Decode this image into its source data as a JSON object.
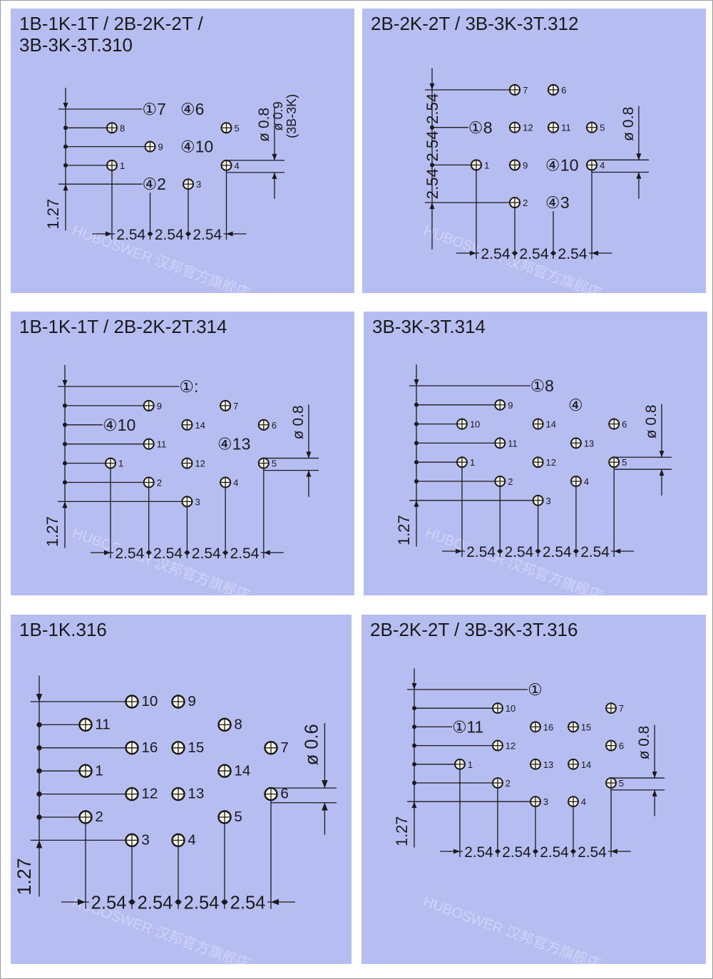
{
  "watermark": "HUBOSWER 汉邦官方旗舰店",
  "watermark_en": "HUBOSWER Hanbang Official Flagship Store",
  "colors": {
    "panel": "#b5bdf1",
    "line": "#1a1a1a",
    "hole_fill": "#fffbe8"
  },
  "panels": [
    {
      "title": "1B-1K-1T / 2B-2K-2T /\n3B-3K-3T.310",
      "pitch_label": "2.54",
      "left_labels": [
        "1.27"
      ],
      "diameter_labels": [
        "ø 0.8",
        "ø 0.9",
        "(3B-3K)"
      ],
      "rows": [
        [
          "",
          "①7",
          "④6",
          ""
        ],
        [
          "8",
          "",
          "",
          "5"
        ],
        [
          "",
          "9",
          "④10",
          ""
        ],
        [
          "1",
          "",
          "",
          "4"
        ],
        [
          "",
          "④2",
          "3",
          ""
        ]
      ]
    },
    {
      "title": "2B-2K-2T / 3B-3K-3T.312",
      "pitch_label": "2.54",
      "left_labels": [
        "2.54",
        "2.54",
        "2.54"
      ],
      "diameter_labels": [
        "ø 0.8"
      ],
      "rows": [
        [
          "",
          "7",
          "6",
          ""
        ],
        [
          "①8",
          "12",
          "11",
          "5"
        ],
        [
          "1",
          "9",
          "④10",
          "4"
        ],
        [
          "",
          "2",
          "④3",
          ""
        ]
      ]
    },
    {
      "title": "1B-1K-1T / 2B-2K-2T.314",
      "pitch_label": "2.54",
      "left_labels": [
        "1.27"
      ],
      "diameter_labels": [
        "ø 0.8"
      ],
      "rows": [
        [
          "",
          "",
          "①:",
          "",
          ""
        ],
        [
          "",
          "9",
          "",
          "7",
          ""
        ],
        [
          "④10",
          "",
          "14",
          "",
          "6"
        ],
        [
          "",
          "11",
          "",
          "④13",
          ""
        ],
        [
          "1",
          "",
          "12",
          "",
          "5"
        ],
        [
          "",
          "2",
          "",
          "4",
          ""
        ],
        [
          "",
          "",
          "3",
          "",
          ""
        ]
      ]
    },
    {
      "title": "3B-3K-3T.314",
      "pitch_label": "2.54",
      "left_labels": [
        "1.27"
      ],
      "diameter_labels": [
        "ø 0.8"
      ],
      "rows": [
        [
          "",
          "",
          "①8",
          "",
          ""
        ],
        [
          "",
          "9",
          "",
          "④",
          ""
        ],
        [
          "10",
          "",
          "14",
          "",
          "6"
        ],
        [
          "",
          "11",
          "",
          "13",
          ""
        ],
        [
          "1",
          "",
          "12",
          "",
          "5"
        ],
        [
          "",
          "2",
          "",
          "4",
          ""
        ],
        [
          "",
          "",
          "3",
          "",
          ""
        ]
      ]
    },
    {
      "title": "1B-1K.316",
      "pitch_label": "2.54",
      "left_labels": [
        "1.27"
      ],
      "diameter_labels": [
        "ø 0.6"
      ],
      "rows": [
        [
          "",
          "10",
          "9",
          "",
          ""
        ],
        [
          "11",
          "",
          "",
          "8",
          ""
        ],
        [
          "",
          "16",
          "15",
          "",
          "7"
        ],
        [
          "1",
          "",
          "",
          "14",
          ""
        ],
        [
          "",
          "12",
          "13",
          "",
          "6"
        ],
        [
          "2",
          "",
          "",
          "5",
          ""
        ],
        [
          "",
          "3",
          "4",
          "",
          ""
        ]
      ]
    },
    {
      "title": "2B-2K-2T / 3B-3K-3T.316",
      "pitch_label": "2.54",
      "left_labels": [
        "1.27"
      ],
      "diameter_labels": [
        "ø 0.8"
      ],
      "rows": [
        [
          "",
          "",
          "①",
          "",
          ""
        ],
        [
          "",
          "10",
          "",
          "",
          "7"
        ],
        [
          "①11",
          "",
          "16",
          "15",
          ""
        ],
        [
          "",
          "12",
          "",
          "",
          "6"
        ],
        [
          "1",
          "",
          "13",
          "14",
          ""
        ],
        [
          "",
          "2",
          "",
          "",
          "5"
        ],
        [
          "",
          "",
          "3",
          "4",
          ""
        ]
      ]
    }
  ]
}
